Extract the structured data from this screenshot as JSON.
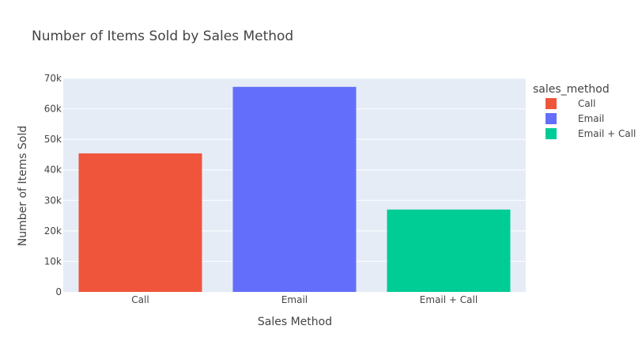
{
  "chart_data": {
    "type": "bar",
    "title": "Number of Items Sold by Sales Method",
    "xlabel": "Sales Method",
    "ylabel": "Number of Items Sold",
    "categories": [
      "Call",
      "Email",
      "Email + Call"
    ],
    "values": [
      45400,
      67200,
      27000
    ],
    "colors": [
      "#EF553B",
      "#636EFA",
      "#00CC96"
    ],
    "ylim": [
      0,
      70000
    ],
    "yticks": [
      0,
      10000,
      20000,
      30000,
      40000,
      50000,
      60000,
      70000
    ],
    "ytick_labels": [
      "0",
      "10k",
      "20k",
      "30k",
      "40k",
      "50k",
      "60k",
      "70k"
    ],
    "grid": true,
    "plot_background": "#E5ECF6",
    "legend": {
      "title": "sales_method",
      "placement": "right",
      "entries": [
        "Call",
        "Email",
        "Email + Call"
      ]
    }
  }
}
